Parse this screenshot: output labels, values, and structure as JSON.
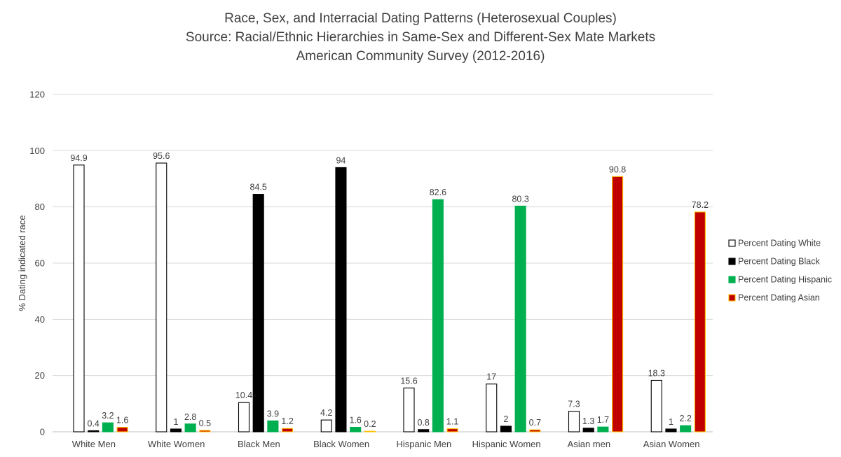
{
  "chart_data": {
    "type": "bar",
    "title": [
      "Race, Sex, and Interracial Dating Patterns (Heterosexual Couples)",
      "Source: Racial/Ethnic Hierarchies in Same-Sex and Different-Sex Mate Markets",
      "American Community Survey (2012-2016)"
    ],
    "ylabel": "% Dating indicated race",
    "xlabel": "",
    "ylim": [
      0,
      120
    ],
    "yticks": [
      0,
      20,
      40,
      60,
      80,
      100,
      120
    ],
    "grid": true,
    "legend_position": "right",
    "categories": [
      "White Men",
      "White Women",
      "Black Men",
      "Black Women",
      "Hispanic Men",
      "Hispanic Women",
      "Asian men",
      "Asian Women"
    ],
    "series": [
      {
        "name": "Percent Dating White",
        "fill": "#ffffff",
        "stroke": "#000000",
        "values": [
          94.9,
          95.6,
          10.4,
          4.2,
          15.6,
          17,
          7.3,
          18.3
        ]
      },
      {
        "name": "Percent Dating Black",
        "fill": "#000000",
        "stroke": "#000000",
        "values": [
          0.4,
          1,
          84.5,
          94,
          0.8,
          2,
          1.3,
          1
        ]
      },
      {
        "name": "Percent Dating Hispanic",
        "fill": "#00b050",
        "stroke": "#00b050",
        "values": [
          3.2,
          2.8,
          3.9,
          1.6,
          82.6,
          80.3,
          1.7,
          2.2
        ]
      },
      {
        "name": "Percent Dating Asian",
        "fill": "#c00000",
        "stroke": "#ffc000",
        "values": [
          1.6,
          0.5,
          1.2,
          0.2,
          1.1,
          0.7,
          90.8,
          78.2
        ]
      }
    ]
  }
}
